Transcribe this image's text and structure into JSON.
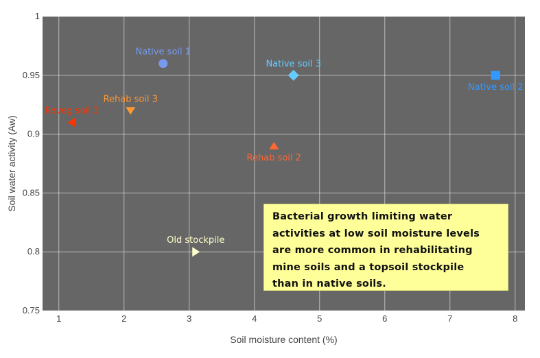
{
  "chart_data": {
    "type": "scatter",
    "xlabel": "Soil moisture content (%)",
    "ylabel": "Soil water activity (Aw)",
    "xlim": [
      0.75,
      8.15
    ],
    "ylim": [
      0.75,
      1.0
    ],
    "xticks": [
      1,
      2,
      3,
      4,
      5,
      6,
      7,
      8
    ],
    "yticks": [
      0.75,
      0.8,
      0.85,
      0.9,
      0.95,
      1
    ],
    "ytick_labels": [
      "0.75",
      "0.8",
      "0.85",
      "0.9",
      "0.95",
      "1"
    ],
    "grid": true,
    "plot_background": "#666666",
    "points": [
      {
        "label": "Native soil 1",
        "x": 2.6,
        "y": 0.96,
        "marker": "circle",
        "color": "#7799ee",
        "label_position": "top"
      },
      {
        "label": "Native soil 2",
        "x": 7.7,
        "y": 0.95,
        "marker": "square",
        "color": "#3399ff",
        "label_position": "bottom"
      },
      {
        "label": "Native soil 3",
        "x": 4.6,
        "y": 0.95,
        "marker": "diamond",
        "color": "#66ccff",
        "label_position": "top"
      },
      {
        "label": "Rehab soil 2",
        "x": 4.3,
        "y": 0.89,
        "marker": "triangle-up",
        "color": "#ff6633",
        "label_position": "bottom"
      },
      {
        "label": "Rehab soil 3",
        "x": 2.1,
        "y": 0.92,
        "marker": "triangle-down",
        "color": "#ff9933",
        "label_position": "top"
      },
      {
        "label": "Reveg soil 3",
        "x": 1.2,
        "y": 0.91,
        "marker": "triangle-left",
        "color": "#ff3300",
        "label_position": "top"
      },
      {
        "label": "Old stockpile",
        "x": 3.1,
        "y": 0.8,
        "marker": "triangle-right",
        "color": "#ffffcc",
        "label_position": "top"
      }
    ],
    "annotation": {
      "lines": [
        "Bacterial growth limiting water",
        "activities at low soil moisture levels",
        "are more common in rehabilitating",
        "mine soils and a topsoil stockpile",
        "than in native soils."
      ],
      "background": "#ffff99"
    }
  }
}
